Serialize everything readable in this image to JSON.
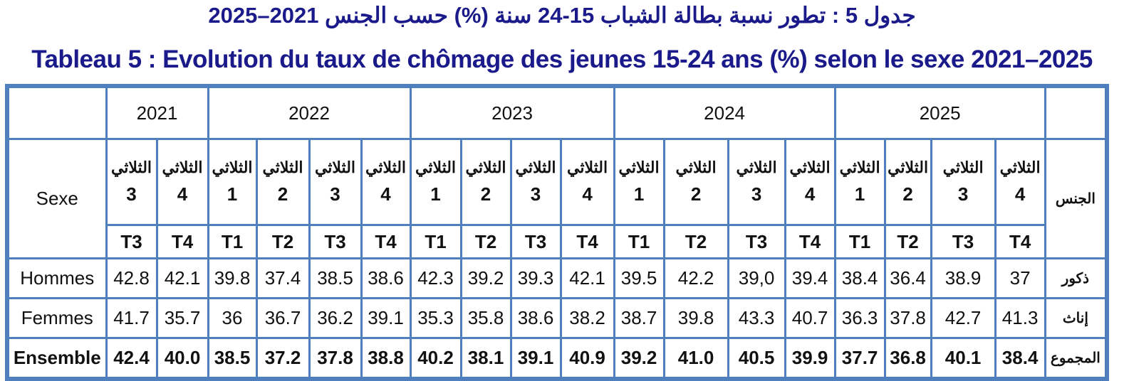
{
  "title_ar": "جدول 5 : تطور نسبة بطالة الشباب 15-24 سنة (%) حسب الجنس 2021–2025",
  "title_fr": "Tableau 5 : Evolution du taux de chômage des jeunes 15-24 ans (%) selon le sexe 2021–2025",
  "colors": {
    "title": "#1b1a8a",
    "border": "#4f7fbd"
  },
  "header": {
    "sexe_fr": "Sexe",
    "sexe_ar": "الجنس",
    "quarter_ar": "الثلاثي",
    "years": [
      {
        "year": "2021",
        "quarters": [
          "3",
          "4"
        ],
        "codes": [
          "T3",
          "T4"
        ]
      },
      {
        "year": "2022",
        "quarters": [
          "1",
          "2",
          "3",
          "4"
        ],
        "codes": [
          "T1",
          "T2",
          "T3",
          "T4"
        ]
      },
      {
        "year": "2023",
        "quarters": [
          "1",
          "2",
          "3",
          "4"
        ],
        "codes": [
          "T1",
          "T2",
          "T3",
          "T4"
        ]
      },
      {
        "year": "2024",
        "quarters": [
          "1",
          "2",
          "3",
          "4"
        ],
        "codes": [
          "T1",
          "T2",
          "T3",
          "T4"
        ]
      },
      {
        "year": "2025",
        "quarters": [
          "1",
          "2",
          "3",
          "4"
        ],
        "codes": [
          "T1",
          "T2",
          "T3",
          "T4"
        ]
      }
    ]
  },
  "rows": [
    {
      "fr": "Hommes",
      "ar": "ذكور",
      "bold": false,
      "values": [
        "42.8",
        "42.1",
        "39.8",
        "37.4",
        "38.5",
        "38.6",
        "42.3",
        "39.2",
        "39.3",
        "42.1",
        "39.5",
        "42.2",
        "39,0",
        "39.4",
        "38.4",
        "36.4",
        "38.9",
        "37"
      ]
    },
    {
      "fr": "Femmes",
      "ar": "إناث",
      "bold": false,
      "values": [
        "41.7",
        "35.7",
        "36",
        "36.7",
        "36.2",
        "39.1",
        "35.3",
        "35.8",
        "38.6",
        "38.2",
        "38.7",
        "39.8",
        "43.3",
        "40.7",
        "36.3",
        "37.8",
        "42.7",
        "41.3"
      ]
    },
    {
      "fr": "Ensemble",
      "ar": "المجموع",
      "bold": true,
      "values": [
        "42.4",
        "40.0",
        "38.5",
        "37.2",
        "37.8",
        "38.8",
        "40.2",
        "38.1",
        "39.1",
        "40.9",
        "39.2",
        "41.0",
        "40.5",
        "39.9",
        "37.7",
        "36.8",
        "40.1",
        "38.4"
      ]
    }
  ]
}
